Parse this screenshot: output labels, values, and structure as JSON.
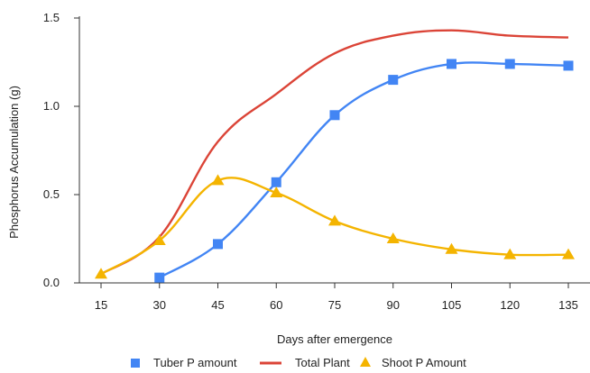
{
  "chart_data": {
    "type": "line",
    "title": "",
    "xlabel": "Days after emergence",
    "ylabel": "Phosphorus Accumulation (g)",
    "categories": [
      "15",
      "30",
      "45",
      "60",
      "75",
      "90",
      "105",
      "120",
      "135"
    ],
    "yticks": [
      "0.0",
      "0.5",
      "1.0",
      "1.5"
    ],
    "ylim": [
      0,
      1.5
    ],
    "grid": false,
    "legend_position": "bottom",
    "series": [
      {
        "name": "Tuber P amount",
        "color": "#4285f4",
        "marker": "square",
        "values": [
          null,
          0.03,
          0.22,
          0.57,
          0.95,
          1.15,
          1.24,
          1.24,
          1.23
        ]
      },
      {
        "name": "Total Plant",
        "color": "#db4437",
        "marker": "none",
        "values": [
          0.05,
          0.26,
          0.8,
          1.07,
          1.3,
          1.4,
          1.43,
          1.4,
          1.39
        ]
      },
      {
        "name": "Shoot P Amount",
        "color": "#f4b400",
        "marker": "triangle",
        "values": [
          0.05,
          0.24,
          0.58,
          0.51,
          0.35,
          0.25,
          0.19,
          0.16,
          0.16
        ]
      }
    ]
  }
}
